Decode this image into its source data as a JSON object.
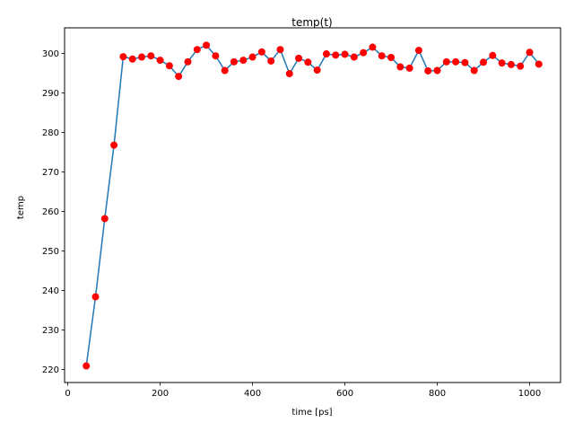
{
  "chart_data": {
    "type": "line",
    "title": "temp(t)",
    "xlabel": "time [ps]",
    "ylabel": "temp",
    "xlim": [
      -7,
      1067
    ],
    "ylim": [
      216.7,
      306.5
    ],
    "xticks": [
      0,
      200,
      400,
      600,
      800,
      1000
    ],
    "yticks": [
      220,
      230,
      240,
      250,
      260,
      270,
      280,
      290,
      300
    ],
    "grid": false,
    "line_color": "#1f77b4",
    "marker_color": "#ff0000",
    "series": [
      {
        "x": [
          40,
          60,
          80,
          100,
          120,
          140,
          160,
          180,
          200,
          220,
          240,
          260,
          280,
          300,
          320,
          340,
          360,
          380,
          400,
          420,
          440,
          460,
          480,
          500,
          520,
          540,
          560,
          580,
          600,
          620,
          640,
          660,
          680,
          700,
          720,
          740,
          760,
          780,
          800,
          820,
          840,
          860,
          880,
          900,
          920,
          940,
          960,
          980,
          1000,
          1020
        ],
        "y": [
          220.9,
          238.4,
          258.2,
          276.8,
          299.2,
          298.6,
          299.1,
          299.4,
          298.3,
          296.9,
          294.2,
          297.9,
          301.0,
          302.1,
          299.4,
          295.7,
          297.9,
          298.3,
          299.1,
          300.4,
          298.1,
          301.0,
          294.9,
          298.8,
          297.8,
          295.8,
          299.9,
          299.6,
          299.8,
          299.1,
          300.2,
          301.6,
          299.4,
          299.0,
          296.6,
          296.3,
          300.8,
          295.6,
          295.7,
          297.9,
          297.9,
          297.7,
          295.7,
          297.8,
          299.5,
          297.6,
          297.2,
          296.8,
          300.3,
          297.3
        ]
      }
    ]
  }
}
